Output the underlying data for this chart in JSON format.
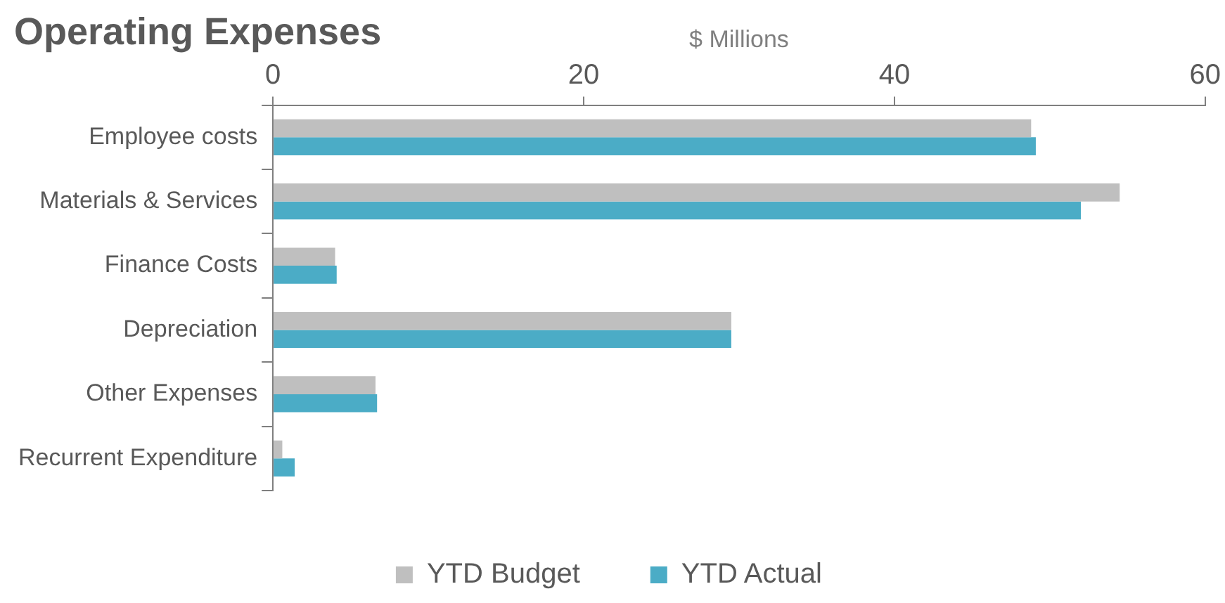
{
  "chart_data": {
    "type": "bar",
    "orientation": "horizontal",
    "title": "Operating Expenses",
    "xlabel": "$ Millions",
    "categories": [
      "Employee costs",
      "Materials & Services",
      "Finance Costs",
      "Depreciation",
      "Other Expenses",
      "Recurrent Expenditure"
    ],
    "series": [
      {
        "name": "YTD Budget",
        "color": "#bfbfbf",
        "values": [
          48.8,
          54.5,
          4.0,
          29.5,
          6.6,
          0.6
        ]
      },
      {
        "name": "YTD Actual",
        "color": "#4bacc6",
        "values": [
          49.1,
          52.0,
          4.1,
          29.5,
          6.7,
          1.4
        ]
      }
    ],
    "xlim": [
      0,
      60
    ],
    "xticks": [
      0,
      20,
      40,
      60
    ],
    "grid": false,
    "legend": "bottom"
  }
}
